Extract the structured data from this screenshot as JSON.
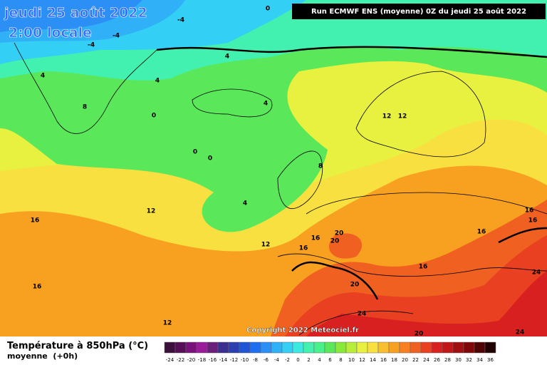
{
  "header": {
    "date": "jeudi 25 août 2022",
    "time": "2:00 locale",
    "run": "Run ECMWF ENS (moyenne) 0Z du jeudi 25 août 2022"
  },
  "copyright": "Copyright 2022 Meteociel.fr",
  "footer": {
    "title": "Température à 850hPa (°C)",
    "subtitle": "moyenne  (+0h)"
  },
  "contour_labels": [
    "0",
    "-4",
    "-4",
    "-4",
    "4",
    "4",
    "4",
    "8",
    "0",
    "4",
    "12",
    "12",
    "0",
    "0",
    "8",
    "4",
    "12",
    "16",
    "16",
    "20",
    "20",
    "12",
    "16",
    "16",
    "16",
    "16",
    "16",
    "24",
    "16",
    "20",
    "24",
    "12",
    "20",
    "24"
  ],
  "legend": {
    "labels": [
      "-24",
      "-22",
      "-20",
      "-18",
      "-16",
      "-14",
      "-12",
      "-10",
      "-8",
      "-6",
      "-4",
      "-2",
      "0",
      "2",
      "4",
      "6",
      "8",
      "10",
      "12",
      "14",
      "16",
      "18",
      "20",
      "22",
      "24",
      "26",
      "28",
      "30",
      "32",
      "34",
      "36"
    ],
    "colors": [
      "#3d0f3d",
      "#560f56",
      "#7a117a",
      "#9a1a9a",
      "#6a1f7a",
      "#3b2f8f",
      "#2b3fb0",
      "#1e55d6",
      "#1e6ef0",
      "#2b8ff5",
      "#2fb0f7",
      "#33cff5",
      "#3de8e0",
      "#42f0b0",
      "#4af08a",
      "#5ae85a",
      "#8ae83a",
      "#b8ee3a",
      "#e8f040",
      "#f8e040",
      "#f8c030",
      "#f8a020",
      "#f88020",
      "#f06020",
      "#e84020",
      "#d82020",
      "#c01818",
      "#a01010",
      "#800808",
      "#500404",
      "#200000"
    ]
  }
}
